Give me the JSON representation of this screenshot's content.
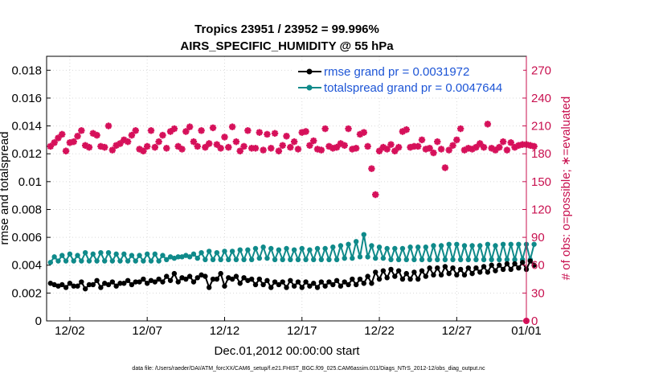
{
  "chart_data": {
    "type": "line",
    "title": "Tropics 23951 / 23952 = 99.996%",
    "subtitle": "AIRS_SPECIFIC_HUMIDITY @ 55 hPa",
    "xlabel": "Dec.01,2012 00:00:00 start",
    "ylabel": "rmse and totalspread",
    "ylabel_right": "# of obs: o=possible; ∗=evaluated",
    "xlim": [
      0,
      31
    ],
    "ylim": [
      0,
      0.019
    ],
    "ylim_right": [
      0,
      285
    ],
    "x_ticks": [
      {
        "x": 1.5,
        "label": "12/02"
      },
      {
        "x": 6.5,
        "label": "12/07"
      },
      {
        "x": 11.5,
        "label": "12/12"
      },
      {
        "x": 16.5,
        "label": "12/17"
      },
      {
        "x": 21.5,
        "label": "12/22"
      },
      {
        "x": 26.5,
        "label": "12/27"
      },
      {
        "x": 31,
        "label": "01/01"
      }
    ],
    "y_ticks": [
      {
        "v": 0,
        "label": "0"
      },
      {
        "v": 0.002,
        "label": "0.002"
      },
      {
        "v": 0.004,
        "label": "0.004"
      },
      {
        "v": 0.006,
        "label": "0.006"
      },
      {
        "v": 0.008,
        "label": "0.008"
      },
      {
        "v": 0.01,
        "label": "0.01"
      },
      {
        "v": 0.012,
        "label": "0.012"
      },
      {
        "v": 0.014,
        "label": "0.014"
      },
      {
        "v": 0.016,
        "label": "0.016"
      },
      {
        "v": 0.018,
        "label": "0.018"
      }
    ],
    "y_ticks_right": [
      {
        "v": 0,
        "label": "0"
      },
      {
        "v": 30,
        "label": "30"
      },
      {
        "v": 60,
        "label": "60"
      },
      {
        "v": 90,
        "label": "90"
      },
      {
        "v": 120,
        "label": "120"
      },
      {
        "v": 150,
        "label": "150"
      },
      {
        "v": 180,
        "label": "180"
      },
      {
        "v": 210,
        "label": "210"
      },
      {
        "v": 240,
        "label": "240"
      },
      {
        "v": 270,
        "label": "270"
      }
    ],
    "colors": {
      "rmse": "#000000",
      "spread": "#0f8a8a",
      "obs": "#d6105a",
      "legend_text": "#1d55d6"
    },
    "legend": {
      "placement": "top-right",
      "entries": [
        "rmse grand pr = 0.0031972",
        "totalspread grand pr = 0.0047644"
      ]
    },
    "series": [
      {
        "name": "rmse",
        "x_start": 0.25,
        "x_step": 0.25,
        "values": [
          0.0027,
          0.0026,
          0.0025,
          0.0026,
          0.0024,
          0.0027,
          0.0025,
          0.0025,
          0.0028,
          0.0023,
          0.0026,
          0.0026,
          0.0029,
          0.0024,
          0.0027,
          0.0026,
          0.0028,
          0.0025,
          0.0027,
          0.0027,
          0.0029,
          0.0026,
          0.0028,
          0.0028,
          0.003,
          0.0027,
          0.0029,
          0.0028,
          0.003,
          0.0028,
          0.0032,
          0.0029,
          0.0034,
          0.0028,
          0.0031,
          0.003,
          0.0032,
          0.0028,
          0.0031,
          0.0033,
          0.0032,
          0.0024,
          0.003,
          0.003,
          0.0034,
          0.0025,
          0.0031,
          0.003,
          0.0032,
          0.0027,
          0.0031,
          0.0029,
          0.003,
          0.0026,
          0.003,
          0.0026,
          0.0029,
          0.0024,
          0.0028,
          0.0026,
          0.0028,
          0.0024,
          0.0029,
          0.0025,
          0.0028,
          0.0024,
          0.0028,
          0.0025,
          0.0027,
          0.0024,
          0.0028,
          0.0025,
          0.0028,
          0.0026,
          0.0029,
          0.0025,
          0.0028,
          0.0026,
          0.003,
          0.0026,
          0.003,
          0.0027,
          0.0032,
          0.0027,
          0.0035,
          0.003,
          0.0036,
          0.0031,
          0.0037,
          0.0032,
          0.0036,
          0.003,
          0.0034,
          0.003,
          0.0035,
          0.003,
          0.0036,
          0.0032,
          0.0038,
          0.0033,
          0.0038,
          0.0033,
          0.0039,
          0.0034,
          0.0038,
          0.0033,
          0.0037,
          0.0033,
          0.0038,
          0.0034,
          0.0038,
          0.0035,
          0.0039,
          0.0035,
          0.004,
          0.0036,
          0.004,
          0.0037,
          0.0041,
          0.0037,
          0.0041,
          0.0038,
          0.0042,
          0.0037,
          0.0043,
          0.004
        ]
      },
      {
        "name": "totalspread",
        "x_start": 0.25,
        "x_step": 0.25,
        "values": [
          0.0042,
          0.0046,
          0.0043,
          0.0047,
          0.0043,
          0.0048,
          0.0043,
          0.0047,
          0.0043,
          0.0049,
          0.0043,
          0.0048,
          0.0043,
          0.0049,
          0.0043,
          0.0049,
          0.0043,
          0.0048,
          0.0043,
          0.0048,
          0.0043,
          0.0047,
          0.0043,
          0.0047,
          0.0043,
          0.0048,
          0.0043,
          0.0048,
          0.0043,
          0.0047,
          0.0044,
          0.0046,
          0.0045,
          0.0046,
          0.0046,
          0.0047,
          0.0046,
          0.0048,
          0.0045,
          0.0049,
          0.0044,
          0.005,
          0.0044,
          0.0049,
          0.0044,
          0.005,
          0.0044,
          0.005,
          0.0044,
          0.0051,
          0.0044,
          0.0051,
          0.0044,
          0.0052,
          0.0045,
          0.0053,
          0.0045,
          0.0052,
          0.0044,
          0.0051,
          0.0044,
          0.0052,
          0.0044,
          0.0051,
          0.0044,
          0.0052,
          0.0044,
          0.0051,
          0.0044,
          0.0052,
          0.0044,
          0.0052,
          0.0044,
          0.0053,
          0.0044,
          0.0054,
          0.0045,
          0.0055,
          0.0045,
          0.0057,
          0.0046,
          0.0062,
          0.0046,
          0.0054,
          0.0045,
          0.0053,
          0.0045,
          0.0052,
          0.0044,
          0.0052,
          0.0044,
          0.0052,
          0.0044,
          0.0053,
          0.0044,
          0.0053,
          0.0044,
          0.0053,
          0.0044,
          0.0054,
          0.0044,
          0.0054,
          0.0044,
          0.0055,
          0.0044,
          0.0055,
          0.0044,
          0.0054,
          0.0044,
          0.0054,
          0.0044,
          0.0054,
          0.0044,
          0.0055,
          0.0044,
          0.0054,
          0.0044,
          0.0055,
          0.0044,
          0.0055,
          0.0044,
          0.0055,
          0.0044,
          0.0055,
          0.0044,
          0.0055
        ]
      },
      {
        "name": "# of obs evaluated",
        "x_start": 0.25,
        "x_step": 0.25,
        "values": [
          188,
          192,
          197,
          201,
          183,
          192,
          193,
          199,
          205,
          189,
          187,
          202,
          200,
          188,
          187,
          210,
          184,
          189,
          191,
          195,
          193,
          200,
          205,
          185,
          183,
          188,
          205,
          187,
          193,
          200,
          186,
          204,
          207,
          188,
          185,
          204,
          209,
          193,
          188,
          205,
          187,
          191,
          208,
          190,
          186,
          198,
          187,
          209,
          193,
          183,
          188,
          205,
          186,
          186,
          203,
          184,
          201,
          186,
          202,
          183,
          189,
          199,
          187,
          193,
          185,
          203,
          204,
          189,
          194,
          185,
          184,
          207,
          188,
          186,
          187,
          191,
          189,
          207,
          185,
          186,
          201,
          203,
          188,
          164,
          136,
          183,
          187,
          185,
          190,
          183,
          187,
          204,
          206,
          187,
          188,
          188,
          195,
          185,
          186,
          181,
          193,
          185,
          165,
          184,
          189,
          195,
          207,
          184,
          186,
          185,
          187,
          191,
          187,
          212,
          186,
          184,
          187,
          193,
          184,
          192,
          187,
          189,
          190,
          190,
          189,
          188
        ]
      },
      {
        "name": "# of obs possible",
        "points": [
          [
            31,
            0
          ]
        ]
      }
    ]
  },
  "footnote": "data file: /Users/raeder/DAI/ATM_forcXX/CAM6_setup/f.e21.FHIST_BGC.f09_025.CAM6assim.011/Diags_NTrS_2012-12/obs_diag_output.nc"
}
